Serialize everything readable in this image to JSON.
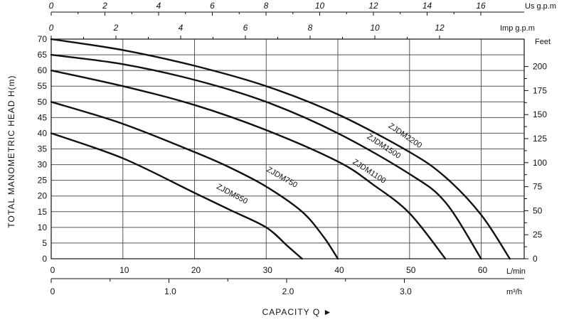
{
  "chart_data": {
    "type": "line",
    "title": "",
    "xlabel": "CAPACITY Q ►",
    "ylabel": "TOTAL MANOMETRIC HEAD H(m)",
    "xlim": [
      0,
      66
    ],
    "ylim": [
      0,
      70
    ],
    "grid": true,
    "x_unit": "L/min",
    "y_ticks": [
      0,
      5,
      10,
      15,
      20,
      25,
      30,
      35,
      40,
      45,
      50,
      55,
      60,
      65,
      70
    ],
    "x_ticks": [
      0,
      10,
      20,
      30,
      40,
      50,
      60
    ],
    "axes": {
      "us_gpm": {
        "unit": "Us g.p.m",
        "ticks": [
          "0",
          "2",
          "4",
          "6",
          "8",
          "10",
          "12",
          "14",
          "16"
        ]
      },
      "imp_gpm": {
        "unit": "Imp g.p.m",
        "ticks": [
          "0",
          "2",
          "4",
          "6",
          "8",
          "10",
          "12"
        ]
      },
      "m3h": {
        "unit": "m³/h",
        "ticks": [
          "0",
          "1.0",
          "2.0",
          "3.0"
        ]
      },
      "feet": {
        "unit": "Feet",
        "ticks": [
          "0",
          "25",
          "50",
          "75",
          "100",
          "125",
          "150",
          "175",
          "200"
        ]
      }
    },
    "series": [
      {
        "name": "ZJDM550",
        "x": [
          0,
          10,
          20,
          25,
          30,
          33,
          35
        ],
        "y": [
          40,
          32,
          21,
          15.5,
          10,
          4,
          0
        ]
      },
      {
        "name": "ZJDM750",
        "x": [
          0,
          10,
          20,
          25,
          30,
          35,
          38,
          40
        ],
        "y": [
          50,
          43,
          34,
          29,
          23,
          15,
          7,
          0
        ]
      },
      {
        "name": "ZJDM1100",
        "x": [
          0,
          10,
          20,
          30,
          40,
          45,
          50,
          55
        ],
        "y": [
          60,
          55,
          49,
          41,
          31,
          23.5,
          14.5,
          0
        ]
      },
      {
        "name": "ZJDM1500",
        "x": [
          0,
          10,
          20,
          30,
          40,
          50,
          55,
          60
        ],
        "y": [
          65,
          62,
          57,
          50,
          40,
          27,
          18,
          0
        ]
      },
      {
        "name": "ZJDM2200",
        "x": [
          0,
          10,
          20,
          30,
          40,
          50,
          55,
          60,
          64
        ],
        "y": [
          70,
          66.5,
          61.5,
          55,
          46,
          34,
          26,
          14,
          0
        ]
      }
    ]
  }
}
